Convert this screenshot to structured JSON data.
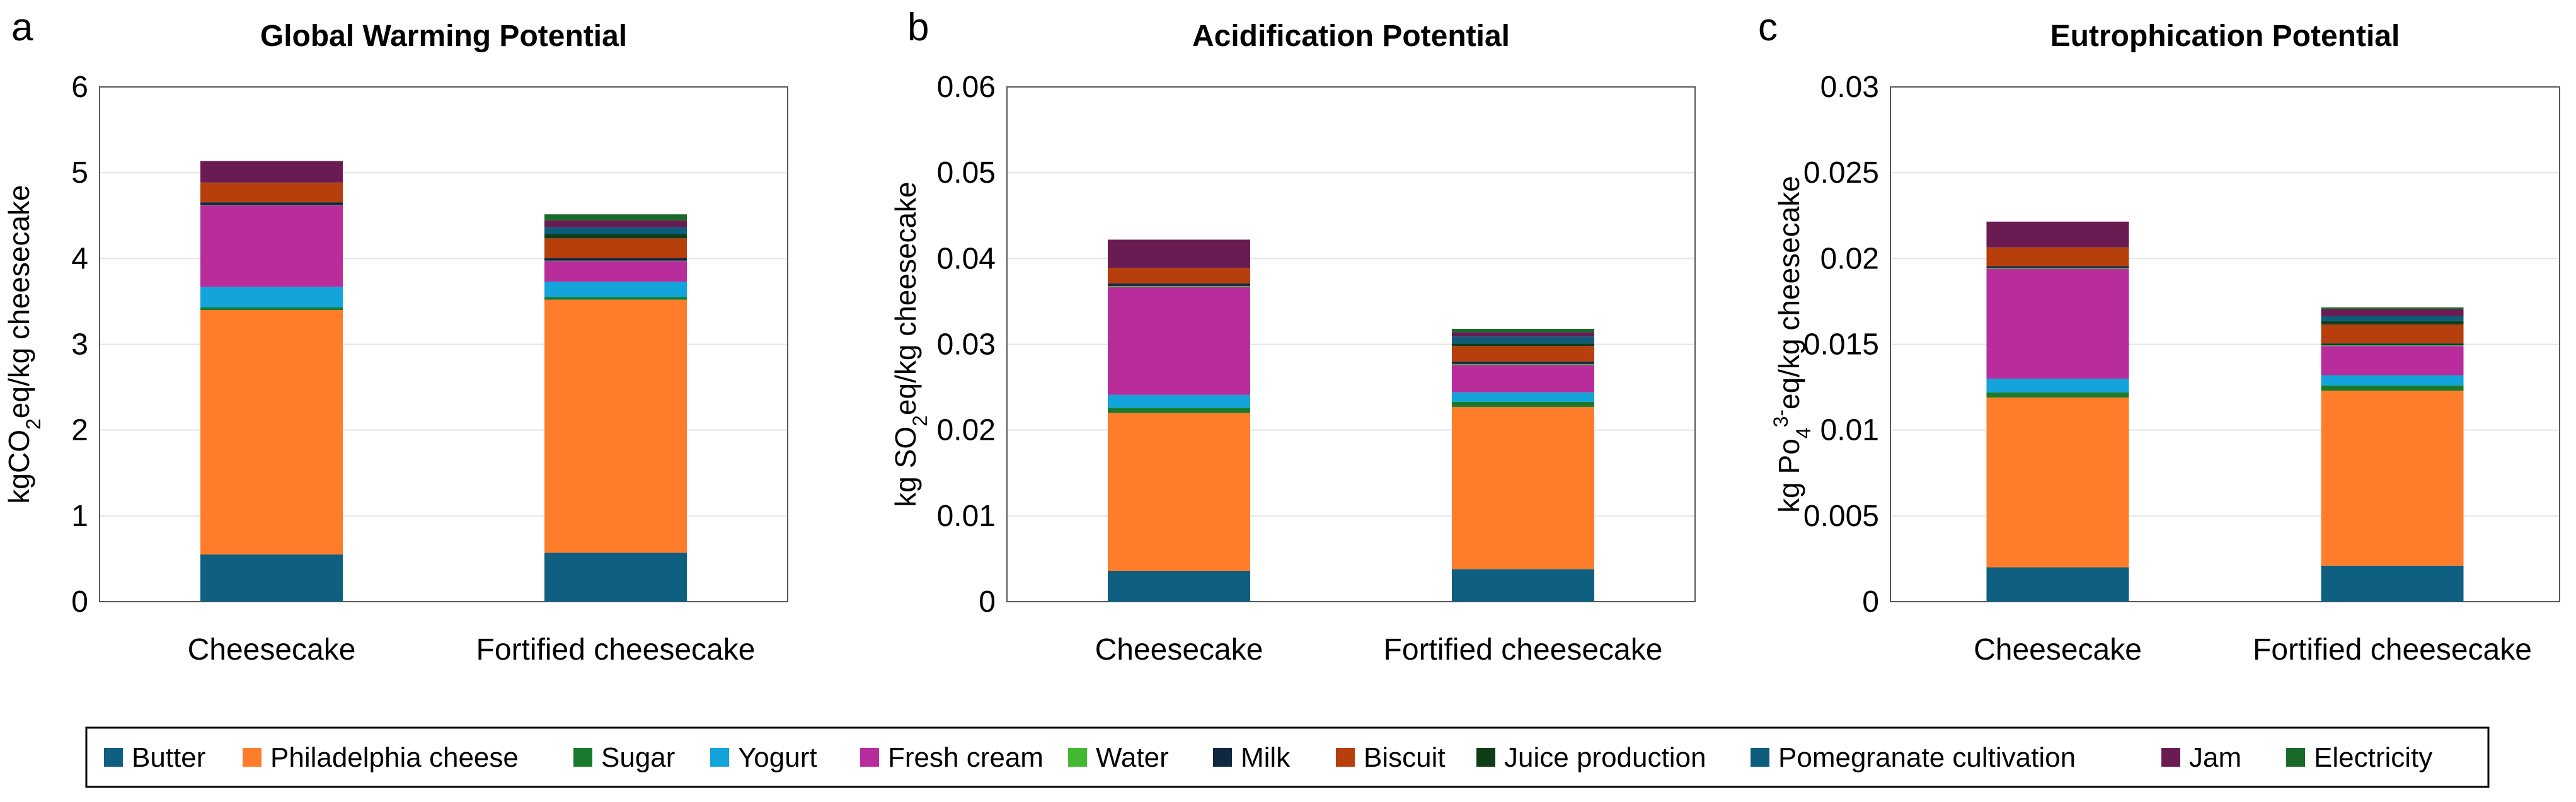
{
  "chart_data": [
    {
      "panel": "a",
      "type": "bar",
      "stacked": true,
      "title": "Global Warming Potential",
      "ylabel_parts": [
        [
          "kgCO",
          "n"
        ],
        [
          "2",
          "sub"
        ],
        [
          "eq/kg cheesecake",
          "n"
        ]
      ],
      "categories": [
        "Cheesecake",
        "Fortified cheesecake"
      ],
      "ylim": [
        0,
        6
      ],
      "yticks": [
        "0",
        "1",
        "2",
        "3",
        "4",
        "5",
        "6"
      ],
      "series": [
        {
          "name": "Butter",
          "values": [
            0.55,
            0.57
          ]
        },
        {
          "name": "Philadelphia cheese",
          "values": [
            2.85,
            2.95
          ]
        },
        {
          "name": "Sugar",
          "values": [
            0.03,
            0.03
          ]
        },
        {
          "name": "Yogurt",
          "values": [
            0.24,
            0.18
          ]
        },
        {
          "name": "Fresh cream",
          "values": [
            0.95,
            0.24
          ]
        },
        {
          "name": "Water",
          "values": [
            0.005,
            0.005
          ]
        },
        {
          "name": "Milk",
          "values": [
            0.03,
            0.03
          ]
        },
        {
          "name": "Biscuit",
          "values": [
            0.23,
            0.23
          ]
        },
        {
          "name": "Juice production",
          "values": [
            0,
            0.05
          ]
        },
        {
          "name": "Pomegranate cultivation",
          "values": [
            0,
            0.08
          ]
        },
        {
          "name": "Jam",
          "values": [
            0.25,
            0.08
          ]
        },
        {
          "name": "Electricity",
          "values": [
            0,
            0.07
          ]
        }
      ]
    },
    {
      "panel": "b",
      "type": "bar",
      "stacked": true,
      "title": "Acidification Potential",
      "ylabel_parts": [
        [
          "kg SO",
          "n"
        ],
        [
          "2",
          "sub"
        ],
        [
          "eq/kg cheesecake",
          "n"
        ]
      ],
      "categories": [
        "Cheesecake",
        "Fortified cheesecake"
      ],
      "ylim": [
        0,
        0.06
      ],
      "yticks": [
        "0",
        "0.01",
        "0.02",
        "0.03",
        "0.04",
        "0.05",
        "0.06"
      ],
      "series": [
        {
          "name": "Butter",
          "values": [
            0.0036,
            0.0038
          ]
        },
        {
          "name": "Philadelphia cheese",
          "values": [
            0.0184,
            0.0189
          ]
        },
        {
          "name": "Sugar",
          "values": [
            0.0006,
            0.0006
          ]
        },
        {
          "name": "Yogurt",
          "values": [
            0.0015,
            0.0011
          ]
        },
        {
          "name": "Fresh cream",
          "values": [
            0.0126,
            0.0032
          ]
        },
        {
          "name": "Water",
          "values": [
            0.0001,
            0.0001
          ]
        },
        {
          "name": "Milk",
          "values": [
            0.0003,
            0.0003
          ]
        },
        {
          "name": "Biscuit",
          "values": [
            0.0018,
            0.0018
          ]
        },
        {
          "name": "Juice production",
          "values": [
            0,
            0.0003
          ]
        },
        {
          "name": "Pomegranate cultivation",
          "values": [
            0,
            0.0008
          ]
        },
        {
          "name": "Jam",
          "values": [
            0.0033,
            0.0005
          ]
        },
        {
          "name": "Electricity",
          "values": [
            0,
            0.0004
          ]
        }
      ]
    },
    {
      "panel": "c",
      "type": "bar",
      "stacked": true,
      "title": "Eutrophication Potential",
      "ylabel_parts": [
        [
          "kg Po",
          "n"
        ],
        [
          "4",
          "sub"
        ],
        [
          "3-",
          "sup"
        ],
        [
          "eq/kg cheesecake",
          "n"
        ]
      ],
      "categories": [
        "Cheesecake",
        "Fortified cheesecake"
      ],
      "ylim": [
        0,
        0.03
      ],
      "yticks": [
        "0",
        "0.005",
        "0.01",
        "0.015",
        "0.02",
        "0.025",
        "0.03"
      ],
      "series": [
        {
          "name": "Butter",
          "values": [
            0.002,
            0.0021
          ]
        },
        {
          "name": "Philadelphia cheese",
          "values": [
            0.0099,
            0.0102
          ]
        },
        {
          "name": "Sugar",
          "values": [
            0.0003,
            0.0003
          ]
        },
        {
          "name": "Yogurt",
          "values": [
            0.0008,
            0.0006
          ]
        },
        {
          "name": "Fresh cream",
          "values": [
            0.0064,
            0.0017
          ]
        },
        {
          "name": "Water",
          "values": [
            5e-05,
            5e-05
          ]
        },
        {
          "name": "Milk",
          "values": [
            0.0001,
            0.0001
          ]
        },
        {
          "name": "Biscuit",
          "values": [
            0.0011,
            0.0011
          ]
        },
        {
          "name": "Juice production",
          "values": [
            0,
            0.0002
          ]
        },
        {
          "name": "Pomegranate cultivation",
          "values": [
            0,
            0.0003
          ]
        },
        {
          "name": "Jam",
          "values": [
            0.0015,
            0.0004
          ]
        },
        {
          "name": "Electricity",
          "values": [
            0,
            0.0001
          ]
        }
      ]
    }
  ],
  "legend": {
    "items": [
      {
        "name": "Butter",
        "color": "#0F5F80"
      },
      {
        "name": "Philadelphia cheese",
        "color": "#FF7D2A"
      },
      {
        "name": "Sugar",
        "color": "#1A7A2C"
      },
      {
        "name": "Yogurt",
        "color": "#12A4DA"
      },
      {
        "name": "Fresh cream",
        "color": "#B82C9B"
      },
      {
        "name": "Water",
        "color": "#44B833"
      },
      {
        "name": "Milk",
        "color": "#0E2841"
      },
      {
        "name": "Biscuit",
        "color": "#B63F0C"
      },
      {
        "name": "Juice production",
        "color": "#0F3D18"
      },
      {
        "name": "Pomegranate cultivation",
        "color": "#0E5C7C"
      },
      {
        "name": "Jam",
        "color": "#6A1C52"
      },
      {
        "name": "Electricity",
        "color": "#1A6A2A"
      }
    ]
  }
}
